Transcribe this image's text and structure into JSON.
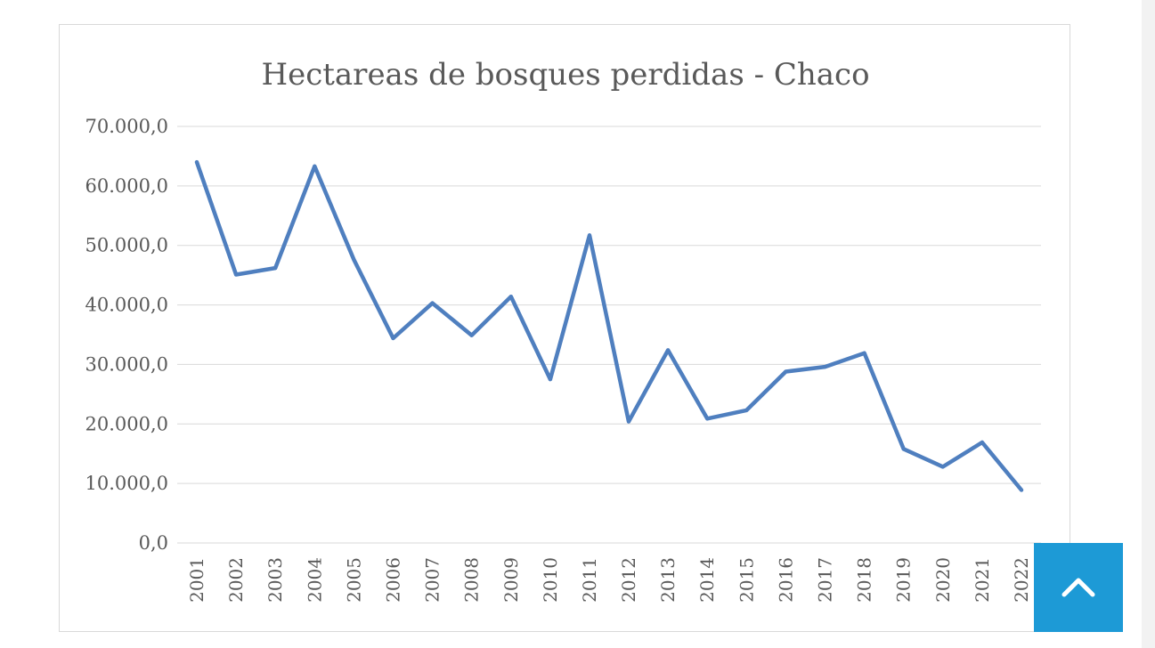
{
  "chart_data": {
    "type": "line",
    "title": "Hectareas de bosques perdidas - Chaco",
    "xlabel": "",
    "ylabel": "",
    "x": [
      "2001",
      "2002",
      "2003",
      "2004",
      "2005",
      "2006",
      "2007",
      "2008",
      "2009",
      "2010",
      "2011",
      "2012",
      "2013",
      "2014",
      "2015",
      "2016",
      "2017",
      "2018",
      "2019",
      "2020",
      "2021",
      "2022"
    ],
    "series": [
      {
        "values": [
          64000,
          45100,
          46200,
          63300,
          47600,
          34400,
          40300,
          34900,
          41400,
          27500,
          51700,
          20400,
          32400,
          20900,
          22300,
          28800,
          29600,
          31900,
          15800,
          12800,
          16900,
          8900
        ],
        "color": "#4f7fbf"
      }
    ],
    "ylim": [
      0,
      70000
    ],
    "yticks": [
      0,
      10000,
      20000,
      30000,
      40000,
      50000,
      60000,
      70000
    ],
    "ytick_labels": [
      "0,0",
      "10.000,0",
      "20.000,0",
      "30.000,0",
      "40.000,0",
      "50.000,0",
      "60.000,0",
      "70.000,0"
    ],
    "grid": true,
    "legend": "none"
  },
  "ui": {
    "scroll_top_icon": "chevron-up-icon",
    "accent_color": "#1d9ad6"
  }
}
